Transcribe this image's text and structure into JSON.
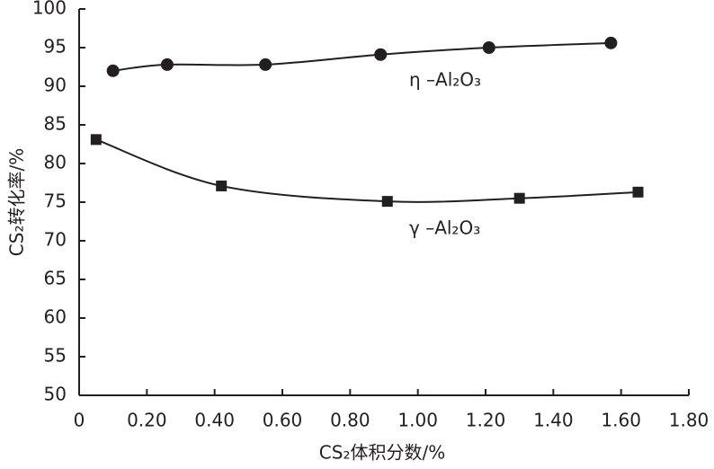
{
  "chart_data": {
    "type": "line",
    "xlabel": "CS₂体积分数/%",
    "ylabel": "CS₂转化率/%",
    "xlim": [
      0,
      1.8
    ],
    "xticks": [
      0,
      {
        "value": 0.2,
        "label": "0.20"
      },
      {
        "value": 0.4,
        "label": "0.40"
      },
      {
        "value": 0.6,
        "label": "0.60"
      },
      {
        "value": 0.8,
        "label": "0.80"
      },
      {
        "value": 1.0,
        "label": "1.00"
      },
      {
        "value": 1.2,
        "label": "1.20"
      },
      {
        "value": 1.4,
        "label": "1.40"
      },
      {
        "value": 1.6,
        "label": "1.60"
      },
      {
        "value": 1.8,
        "label": "1.80"
      }
    ],
    "ylim": [
      50,
      100
    ],
    "yticks": [
      50,
      55,
      60,
      65,
      70,
      75,
      80,
      85,
      90,
      95,
      100
    ],
    "series": [
      {
        "name": "η –Al₂O₃",
        "color": "#231f20",
        "marker": "circle",
        "x": [
          0.1,
          0.26,
          0.55,
          0.89,
          1.21,
          1.57
        ],
        "values": [
          92,
          92.8,
          92.8,
          94.1,
          95.0,
          95.6
        ]
      },
      {
        "name": "γ –Al₂O₃",
        "color": "#231f20",
        "marker": "square",
        "x": [
          0.05,
          0.42,
          0.91,
          1.3,
          1.65
        ],
        "values": [
          83.1,
          77.1,
          75.1,
          75.5,
          76.3
        ]
      }
    ]
  }
}
